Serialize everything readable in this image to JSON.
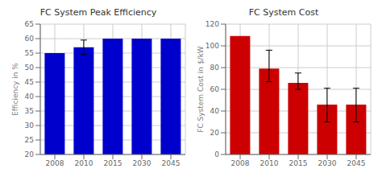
{
  "chart_data": [
    {
      "type": "bar",
      "title": "FC System Peak Efficiency",
      "ylabel": "Efficiency in %",
      "categories": [
        "2008",
        "2010",
        "2015",
        "2030",
        "2045"
      ],
      "values": [
        55,
        57,
        60,
        60,
        60
      ],
      "errors": [
        0,
        2.5,
        0,
        0,
        0
      ],
      "color": "#0000cc",
      "ylim": [
        20,
        65
      ],
      "yticks": [
        20,
        25,
        30,
        35,
        40,
        45,
        50,
        55,
        60,
        65
      ],
      "grid": true
    },
    {
      "type": "bar",
      "title": "FC System Cost",
      "ylabel": "FC System Cost in $/kW",
      "categories": [
        "2008",
        "2010",
        "2015",
        "2030",
        "2045"
      ],
      "values": [
        109,
        79,
        66,
        46,
        46
      ],
      "errors_plus": [
        0,
        17,
        9,
        15,
        15
      ],
      "errors_minus": [
        0,
        12,
        6,
        16,
        16
      ],
      "color": "#cc0000",
      "ylim": [
        0,
        120
      ],
      "yticks": [
        0,
        20,
        40,
        60,
        80,
        100,
        120
      ],
      "grid": true
    }
  ]
}
